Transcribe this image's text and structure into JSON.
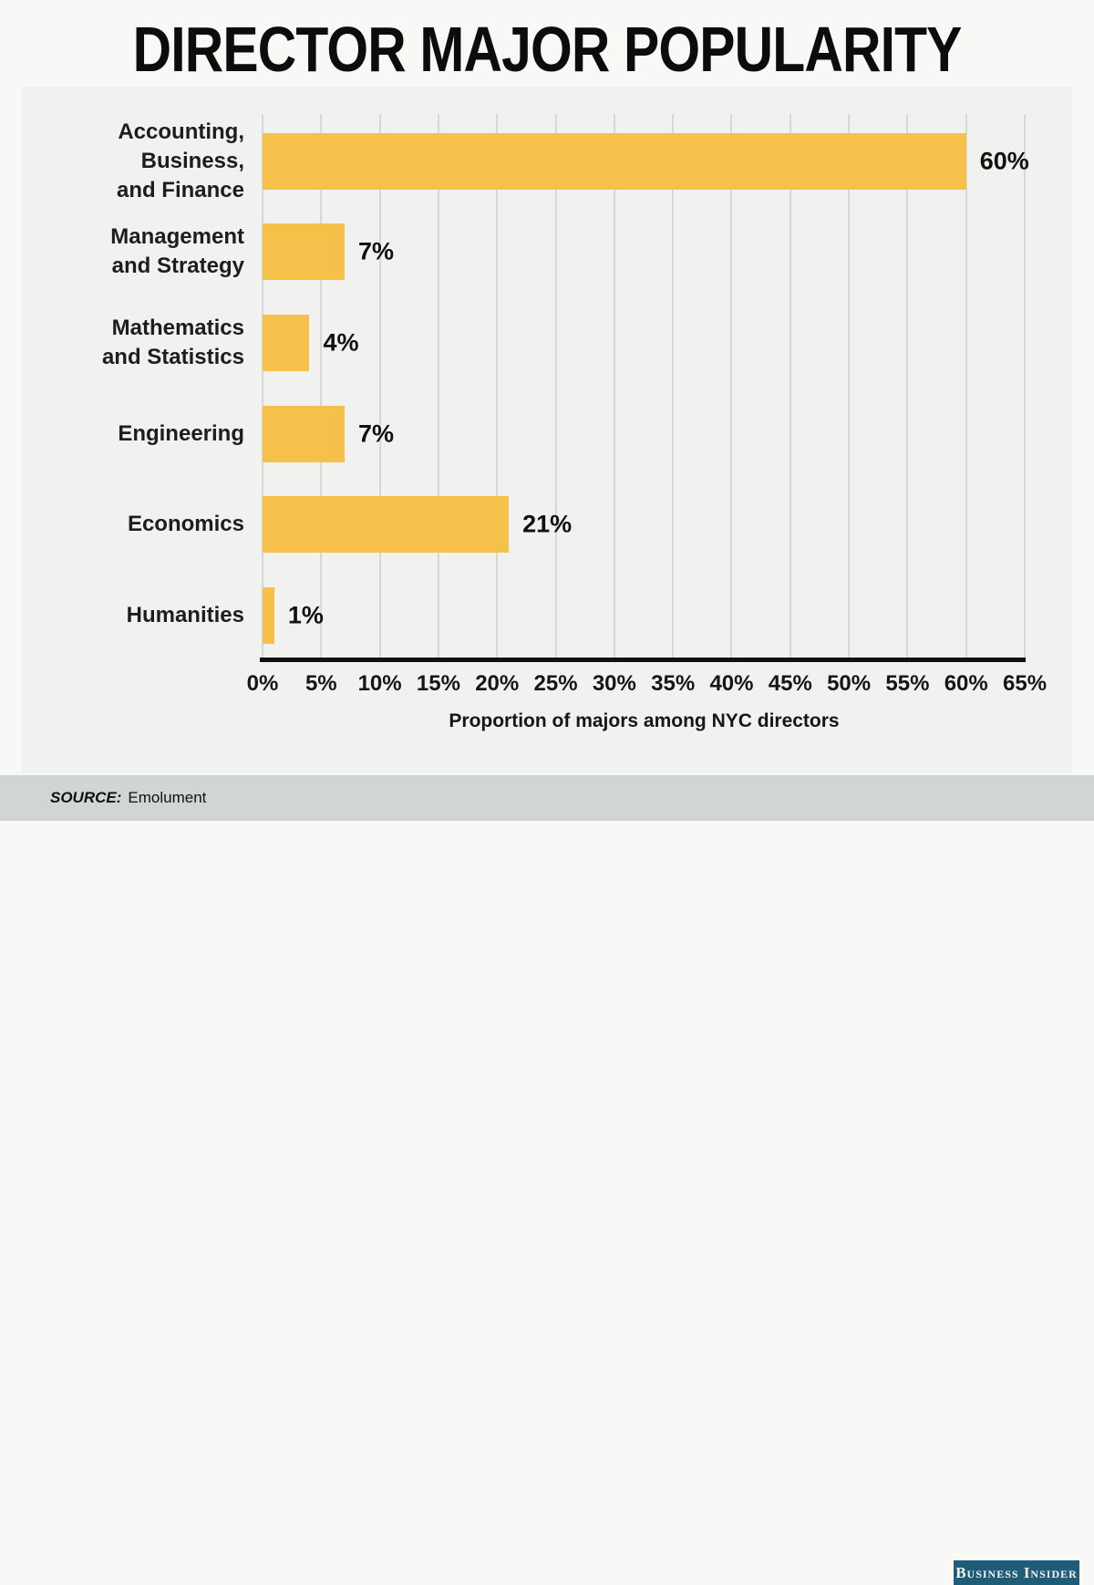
{
  "chart_data": {
    "type": "bar",
    "orientation": "horizontal",
    "title": "DIRECTOR MAJOR POPULARITY",
    "categories": [
      "Accounting, Business, and Finance",
      "Management and Strategy",
      "Mathematics and Statistics",
      "Engineering",
      "Economics",
      "Humanities"
    ],
    "category_lines": [
      [
        "Accounting, Business,",
        "and Finance"
      ],
      [
        "Management",
        "and Strategy"
      ],
      [
        "Mathematics",
        "and Statistics"
      ],
      [
        "Engineering"
      ],
      [
        "Economics"
      ],
      [
        "Humanities"
      ]
    ],
    "values": [
      60,
      7,
      4,
      7,
      21,
      1
    ],
    "value_labels": [
      "60%",
      "7%",
      "4%",
      "7%",
      "21%",
      "1%"
    ],
    "xlabel": "Proportion of majors among NYC directors",
    "x_ticks": [
      0,
      5,
      10,
      15,
      20,
      25,
      30,
      35,
      40,
      45,
      50,
      55,
      60,
      65
    ],
    "x_tick_labels": [
      "0%",
      "5%",
      "10%",
      "15%",
      "20%",
      "25%",
      "30%",
      "35%",
      "40%",
      "45%",
      "50%",
      "55%",
      "60%",
      "65%"
    ],
    "xlim": [
      0,
      65
    ],
    "grid": true,
    "legend": "none",
    "bar_color": "#f6c14a",
    "gridline_color": "#d8d8d5",
    "axis_color": "#121212"
  },
  "footer": {
    "source_label": "SOURCE:",
    "source_value": "Emolument",
    "brand": "Business Insider"
  }
}
